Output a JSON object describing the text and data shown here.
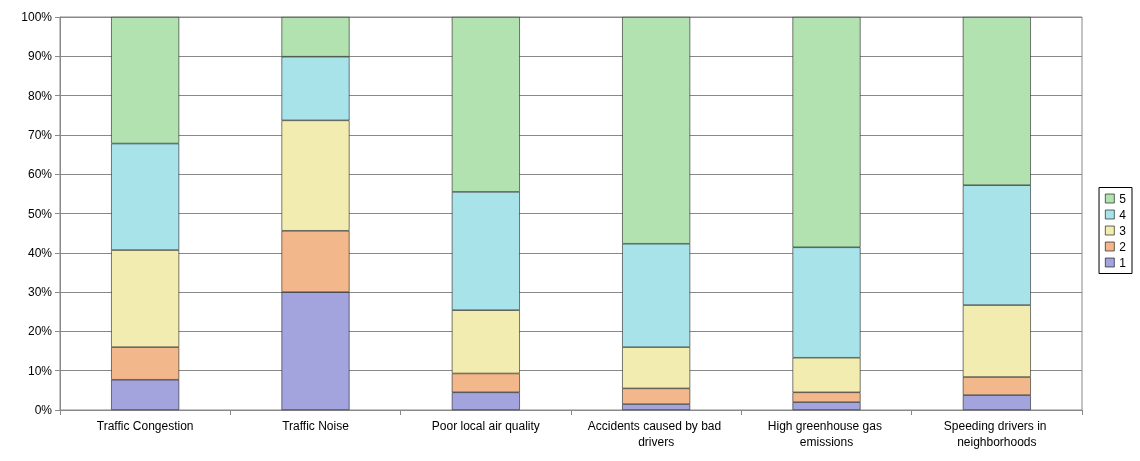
{
  "chart_data": {
    "type": "bar",
    "stacked": true,
    "categories": [
      "Traffic Congestion",
      "Traffic Noise",
      "Poor local air quality",
      "Accidents caused by bad drivers",
      "High greenhouse gas emissions",
      "Speeding drivers in neighborhoods"
    ],
    "series": [
      {
        "name": "1",
        "color": "#a3a3de",
        "values": [
          7.7,
          30,
          4.5,
          1.5,
          2,
          3.8
        ]
      },
      {
        "name": "2",
        "color": "#f2b78a",
        "values": [
          8.3,
          15.6,
          4.8,
          4,
          2.5,
          4.6
        ]
      },
      {
        "name": "3",
        "color": "#f2ecb0",
        "values": [
          24.7,
          28.1,
          16.1,
          10.5,
          8.8,
          18.3
        ]
      },
      {
        "name": "4",
        "color": "#a9e3ea",
        "values": [
          27.1,
          16.2,
          30.1,
          26.3,
          28.1,
          30.5
        ]
      },
      {
        "name": "5",
        "color": "#b2e2b0",
        "values": [
          32.2,
          10.1,
          44.5,
          57.7,
          58.6,
          42.8
        ]
      }
    ],
    "ylim": [
      0,
      100
    ],
    "yticks": [
      {
        "value": 0,
        "label": "0%"
      },
      {
        "value": 10,
        "label": "10%"
      },
      {
        "value": 20,
        "label": "20%"
      },
      {
        "value": 30,
        "label": "30%"
      },
      {
        "value": 40,
        "label": "40%"
      },
      {
        "value": 50,
        "label": "50%"
      },
      {
        "value": 60,
        "label": "60%"
      },
      {
        "value": 70,
        "label": "70%"
      },
      {
        "value": 80,
        "label": "80%"
      },
      {
        "value": 90,
        "label": "90%"
      },
      {
        "value": 100,
        "label": "100%"
      }
    ],
    "grid": "y",
    "legend": "right"
  }
}
